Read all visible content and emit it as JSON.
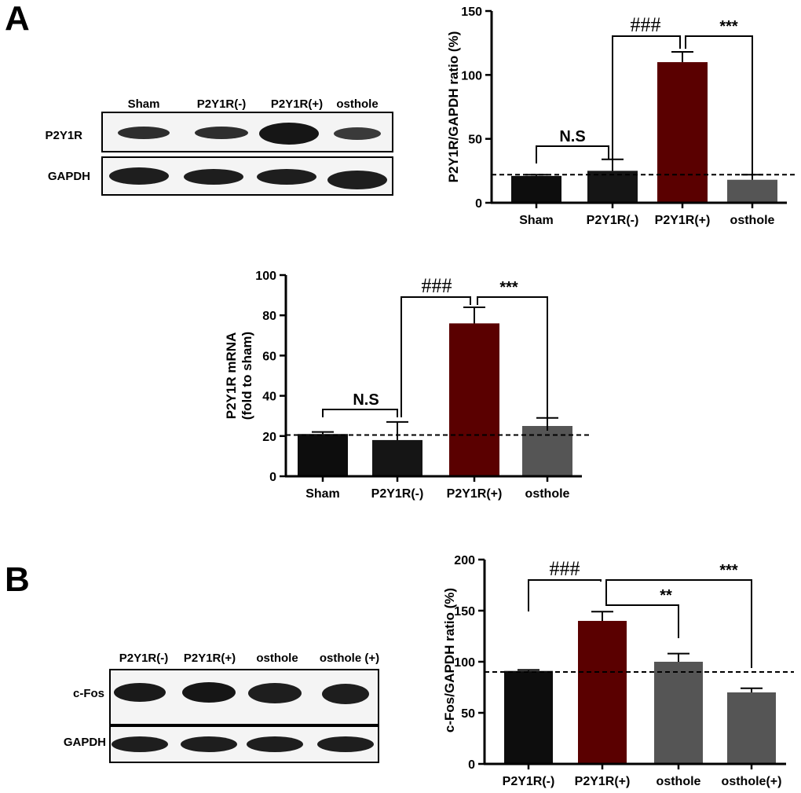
{
  "panels": {
    "a_label": "A",
    "b_label": "B"
  },
  "blots": [
    {
      "lanes": [
        "Sham",
        "P2Y1R(-)",
        "P2Y1R(+)",
        "osthole"
      ],
      "rows": [
        "P2Y1R",
        "GAPDH"
      ]
    },
    {
      "lanes": [
        "P2Y1R(-)",
        "P2Y1R(+)",
        "osthole",
        "osthole (+)"
      ],
      "rows": [
        "c-Fos",
        "GAPDH"
      ]
    }
  ],
  "chart_data": [
    {
      "type": "bar",
      "title": "",
      "ylabel": "P2Y1R/GAPDH ratio (%)",
      "xlabel": "",
      "categories": [
        "Sham",
        "P2Y1R(-)",
        "P2Y1R(+)",
        "osthole"
      ],
      "values": [
        21,
        25,
        110,
        18
      ],
      "errors": [
        1,
        9,
        8,
        4
      ],
      "colors": [
        "#0d0d0d",
        "#151515",
        "#5a0000",
        "#555555"
      ],
      "ylim": [
        0,
        150
      ],
      "yticks": [
        0,
        50,
        100,
        150
      ],
      "reference_line": 22,
      "annotations": [
        {
          "text": "N.S",
          "from": 0,
          "to": 1
        },
        {
          "text": "###",
          "from": 1,
          "to": 2
        },
        {
          "text": "***",
          "from": 2,
          "to": 3
        }
      ]
    },
    {
      "type": "bar",
      "title": "",
      "ylabel": "P2Y1R mRNA",
      "ylabel2": "(fold to sham)",
      "xlabel": "",
      "categories": [
        "Sham",
        "P2Y1R(-)",
        "P2Y1R(+)",
        "osthole"
      ],
      "values": [
        21,
        18,
        76,
        25
      ],
      "errors": [
        1,
        9,
        8,
        4
      ],
      "colors": [
        "#0d0d0d",
        "#151515",
        "#5a0000",
        "#555555"
      ],
      "ylim": [
        0,
        100
      ],
      "yticks": [
        0,
        20,
        40,
        60,
        80,
        100
      ],
      "reference_line": 20.5,
      "annotations": [
        {
          "text": "N.S",
          "from": 0,
          "to": 1
        },
        {
          "text": "###",
          "from": 1,
          "to": 2
        },
        {
          "text": "***",
          "from": 2,
          "to": 3
        }
      ]
    },
    {
      "type": "bar",
      "title": "",
      "ylabel": "c-Fos/GAPDH ratio (%)",
      "xlabel": "",
      "categories": [
        "P2Y1R(-)",
        "P2Y1R(+)",
        "osthole",
        "osthole(+)"
      ],
      "values": [
        91,
        140,
        100,
        70
      ],
      "errors": [
        1,
        9,
        8,
        4
      ],
      "colors": [
        "#0d0d0d",
        "#5a0000",
        "#555555",
        "#555555"
      ],
      "ylim": [
        0,
        200
      ],
      "yticks": [
        0,
        50,
        100,
        150,
        200
      ],
      "reference_line": 90,
      "annotations": [
        {
          "text": "###",
          "from": 0,
          "to": 1
        },
        {
          "text": "**",
          "from": 1,
          "to": 2
        },
        {
          "text": "***",
          "from": 1,
          "to": 3
        }
      ]
    }
  ]
}
